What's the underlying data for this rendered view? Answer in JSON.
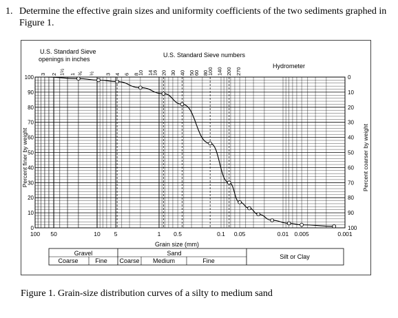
{
  "question": {
    "number": "1.",
    "text": "Determine the effective grain sizes and uniformity coefficients of the two sediments graphed in Figure 1."
  },
  "figure": {
    "caption": "Figure 1.  Grain-size distribution curves of a silty to medium sand",
    "top_left_header_line1": "U.S. Standard Sieve",
    "top_left_header_line2": "openings in inches",
    "top_center_header": "U.S. Standard Sieve numbers",
    "hydrometer_label": "Hydrometer",
    "sieve_inch_labels": [
      "3",
      "2",
      "1½",
      "1",
      "¾",
      "½"
    ],
    "sieve_number_labels": [
      "3",
      "4",
      "6",
      "8",
      "10",
      "14",
      "16",
      "20",
      "30",
      "40",
      "50",
      "60",
      "80",
      "100",
      "140",
      "200",
      "270"
    ],
    "x_tick_labels": [
      "100",
      "50",
      "10",
      "5",
      "1",
      "0.5",
      "0.1",
      "0.05",
      "0.01",
      "0.005",
      "0.001"
    ],
    "x_axis_label": "Grain size (mm)",
    "left_axis_label": "Percent finer by weight",
    "right_axis_label": "Percent coarser by weight",
    "left_tick_labels": [
      "100",
      "90",
      "80",
      "70",
      "60",
      "50",
      "40",
      "30",
      "20",
      "10",
      "0"
    ],
    "right_tick_labels": [
      "0",
      "10",
      "20",
      "30",
      "40",
      "50",
      "60",
      "70",
      "80",
      "90",
      "100"
    ],
    "classification": {
      "gravel": "Gravel",
      "sand": "Sand",
      "coarse": "Coarse",
      "fine": "Fine",
      "medium": "Medium",
      "silt_or_clay": "Silt or Clay"
    }
  },
  "chart_data": {
    "type": "line",
    "x_scale": "log (decreasing to the right)",
    "xlim": [
      100,
      0.001
    ],
    "ylim": [
      0,
      100
    ],
    "xlabel": "Grain size (mm)",
    "ylabel": "Percent finer by weight",
    "ylabel_right": "Percent coarser by weight",
    "grid": true,
    "series": [
      {
        "markers": "open circles",
        "x": [
          20,
          9.5,
          4.75,
          2.0,
          0.85,
          0.425,
          0.15,
          0.074,
          0.05,
          0.035,
          0.025,
          0.015,
          0.008,
          0.005,
          0.0015
        ],
        "y": [
          99,
          98,
          97,
          93,
          89,
          82,
          56,
          30,
          17,
          13,
          9,
          5,
          3,
          2,
          1
        ]
      }
    ]
  }
}
